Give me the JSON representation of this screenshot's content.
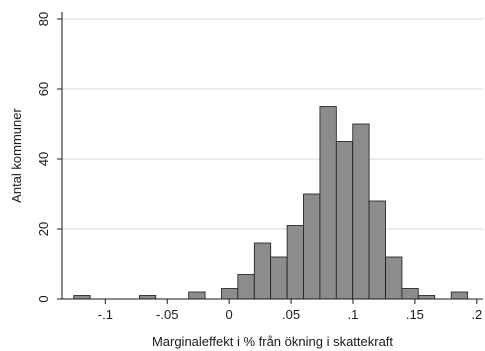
{
  "chart_data": {
    "type": "bar",
    "title": "",
    "xlabel": "Marginaleffekt i % från ökning i skattekraft",
    "ylabel": "Antal kommuner",
    "xlim": [
      -0.135,
      0.205
    ],
    "ylim": [
      0,
      82
    ],
    "xticks": [
      {
        "value": -0.1,
        "label": "-.1"
      },
      {
        "value": -0.05,
        "label": "-.05"
      },
      {
        "value": 0,
        "label": "0"
      },
      {
        "value": 0.05,
        "label": ".05"
      },
      {
        "value": 0.1,
        "label": ".1"
      },
      {
        "value": 0.15,
        "label": ".15"
      },
      {
        "value": 0.2,
        "label": ".2"
      }
    ],
    "yticks": [
      {
        "value": 0,
        "label": "0"
      },
      {
        "value": 20,
        "label": "20"
      },
      {
        "value": 40,
        "label": "40"
      },
      {
        "value": 60,
        "label": "60"
      },
      {
        "value": 80,
        "label": "80"
      }
    ],
    "grid": true,
    "bin_width": 0.01325,
    "bins": [
      {
        "x0": -0.1255,
        "count": 1
      },
      {
        "x0": -0.1123,
        "count": 0
      },
      {
        "x0": -0.099,
        "count": 0
      },
      {
        "x0": -0.0858,
        "count": 0
      },
      {
        "x0": -0.0725,
        "count": 1
      },
      {
        "x0": -0.0592,
        "count": 0
      },
      {
        "x0": -0.046,
        "count": 0
      },
      {
        "x0": -0.0327,
        "count": 2
      },
      {
        "x0": -0.0195,
        "count": 0
      },
      {
        "x0": -0.0062,
        "count": 3
      },
      {
        "x0": 0.007,
        "count": 7
      },
      {
        "x0": 0.0203,
        "count": 16
      },
      {
        "x0": 0.0335,
        "count": 12
      },
      {
        "x0": 0.0468,
        "count": 21
      },
      {
        "x0": 0.06,
        "count": 30
      },
      {
        "x0": 0.0733,
        "count": 55
      },
      {
        "x0": 0.0865,
        "count": 45
      },
      {
        "x0": 0.0998,
        "count": 50
      },
      {
        "x0": 0.113,
        "count": 28
      },
      {
        "x0": 0.1263,
        "count": 12
      },
      {
        "x0": 0.1395,
        "count": 3
      },
      {
        "x0": 0.1528,
        "count": 1
      },
      {
        "x0": 0.166,
        "count": 0
      },
      {
        "x0": 0.1793,
        "count": 2
      }
    ],
    "bar_color": "#8c8c8c",
    "bar_edge_color": "#1a1a1a",
    "grid_color": "#d9d9d9"
  }
}
